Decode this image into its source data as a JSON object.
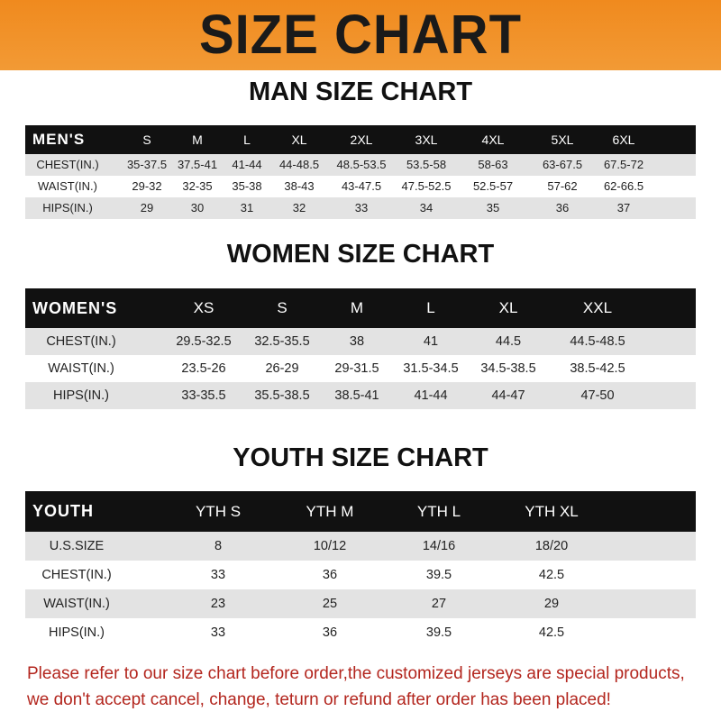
{
  "title": "SIZE CHART",
  "colors": {
    "banner": "#f08a1e",
    "header_row": "#111111",
    "stripe": "#e3e3e3",
    "note": "#b3261e"
  },
  "men": {
    "title": "MAN SIZE CHART",
    "header": [
      "MEN'S",
      "S",
      "M",
      "L",
      "XL",
      "2XL",
      "3XL",
      "4XL",
      "5XL",
      "6XL"
    ],
    "rows": [
      [
        "CHEST(IN.)",
        "35-37.5",
        "37.5-41",
        "41-44",
        "44-48.5",
        "48.5-53.5",
        "53.5-58",
        "58-63",
        "63-67.5",
        "67.5-72"
      ],
      [
        "WAIST(IN.)",
        "29-32",
        "32-35",
        "35-38",
        "38-43",
        "43-47.5",
        "47.5-52.5",
        "52.5-57",
        "57-62",
        "62-66.5"
      ],
      [
        "HIPS(IN.)",
        "29",
        "30",
        "31",
        "32",
        "33",
        "34",
        "35",
        "36",
        "37"
      ]
    ]
  },
  "women": {
    "title": "WOMEN SIZE CHART",
    "header": [
      "WOMEN'S",
      "XS",
      "S",
      "M",
      "L",
      "XL",
      "XXL"
    ],
    "rows": [
      [
        "CHEST(IN.)",
        "29.5-32.5",
        "32.5-35.5",
        "38",
        "41",
        "44.5",
        "44.5-48.5"
      ],
      [
        "WAIST(IN.)",
        "23.5-26",
        "26-29",
        "29-31.5",
        "31.5-34.5",
        "34.5-38.5",
        "38.5-42.5"
      ],
      [
        "HIPS(IN.)",
        "33-35.5",
        "35.5-38.5",
        "38.5-41",
        "41-44",
        "44-47",
        "47-50"
      ]
    ]
  },
  "youth": {
    "title": "YOUTH SIZE CHART",
    "header": [
      "YOUTH",
      "YTH S",
      "YTH M",
      "YTH L",
      "YTH XL"
    ],
    "rows": [
      [
        "U.S.SIZE",
        "8",
        "10/12",
        "14/16",
        "18/20"
      ],
      [
        "CHEST(IN.)",
        "33",
        "36",
        "39.5",
        "42.5"
      ],
      [
        "WAIST(IN.)",
        "23",
        "25",
        "27",
        "29"
      ],
      [
        "HIPS(IN.)",
        "33",
        "36",
        "39.5",
        "42.5"
      ]
    ]
  },
  "note": {
    "line1": "Please refer to our size chart before order,the customized jerseys are special products,",
    "line2": "we don't accept cancel, change, teturn or refund after order has been placed!"
  }
}
